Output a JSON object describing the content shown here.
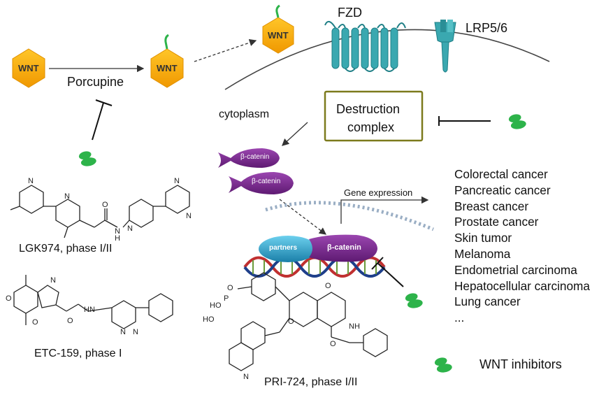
{
  "labels": {
    "wnt": "WNT",
    "porcupine": "Porcupine",
    "fzd": "FZD",
    "lrp": "LRP5/6",
    "cytoplasm": "cytoplasm",
    "destruction_line1": "Destruction",
    "destruction_line2": "complex",
    "beta_catenin": "β-catenin",
    "partners": "partners",
    "gene_expression": "Gene expression",
    "wnt_inhibitors": "WNT inhibitors"
  },
  "cancers": [
    "Colorectal cancer",
    "Pancreatic cancer",
    "Breast cancer",
    "Prostate cancer",
    "Skin tumor",
    "Melanoma",
    "Endometrial carcinoma",
    "Hepatocellular carcinoma",
    "Lung cancer",
    "..."
  ],
  "drugs": [
    {
      "name": "LGK974, phase I/II"
    },
    {
      "name": "ETC-159, phase I"
    },
    {
      "name": "PRI-724, phase I/II"
    }
  ],
  "colors": {
    "wnt_hex": "#f5a800",
    "receptor": "#3aa8b0",
    "inhibitor": "#2db34a",
    "beta_catenin": "#7a2a8e",
    "partners": "#2a9bc4",
    "destruction_border": "#7c7a1c"
  }
}
